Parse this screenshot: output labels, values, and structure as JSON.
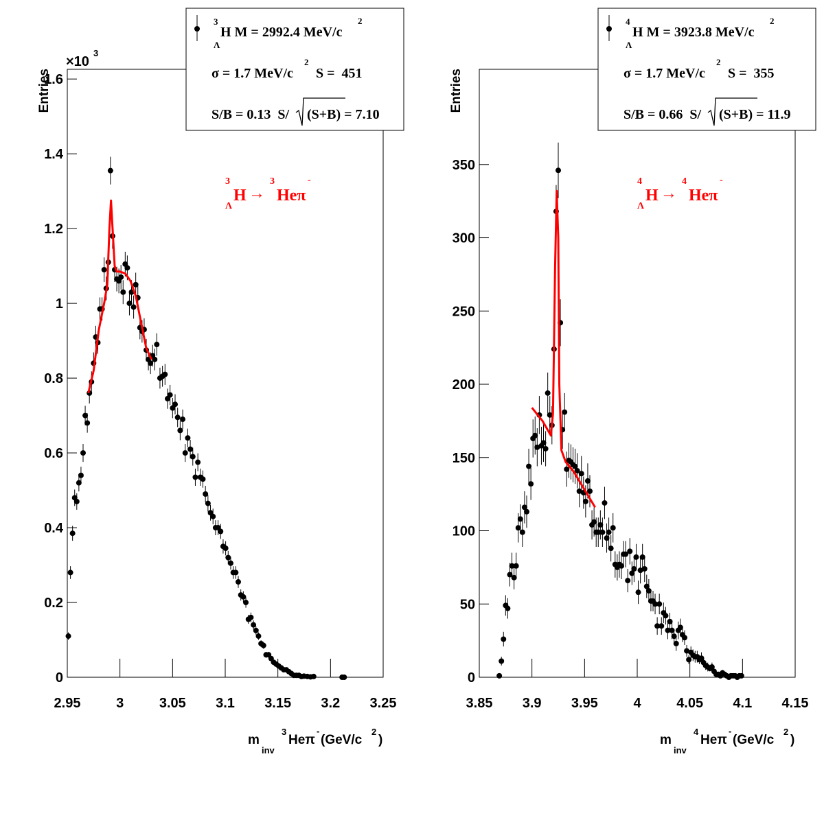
{
  "chart_data": [
    {
      "type": "scatter",
      "ylabel": "Entries",
      "multiplier": [
        "×10",
        "3"
      ],
      "xlabel": [
        "m",
        "inv",
        "3",
        "Heπ",
        "-",
        "(GeV/c",
        "2",
        ")"
      ],
      "annotation": [
        "3",
        "H",
        "Λ",
        "→",
        "3",
        "Heπ",
        "-"
      ],
      "annotation_color": "#ff0000",
      "legend": {
        "line1": [
          "3",
          "Λ",
          "H M = 2992.4 MeV/c",
          "2"
        ],
        "line2": [
          "σ = 1.7 MeV/c",
          "2",
          "S =  451"
        ],
        "line3": [
          "S/B = 0.13  S/",
          "(S+B) = 7.10"
        ]
      },
      "xlim": [
        2.95,
        3.25
      ],
      "xticks": [
        2.95,
        3,
        3.05,
        3.1,
        3.15,
        3.2,
        3.25
      ],
      "ylim": [
        0,
        1.626
      ],
      "yticks": [
        0,
        0.2,
        0.4,
        0.6,
        0.8,
        1,
        1.2,
        1.4,
        1.6
      ],
      "series": [
        {
          "type": "scatter",
          "color": "#000000",
          "x": [
            2.951,
            2.953,
            2.955,
            2.957,
            2.959,
            2.961,
            2.963,
            2.965,
            2.967,
            2.969,
            2.971,
            2.973,
            2.975,
            2.977,
            2.979,
            2.981,
            2.983,
            2.985,
            2.987,
            2.989,
            2.991,
            2.993,
            2.995,
            2.997,
            2.999,
            3.001,
            3.003,
            3.005,
            3.007,
            3.009,
            3.011,
            3.013,
            3.015,
            3.017,
            3.019,
            3.021,
            3.023,
            3.025,
            3.027,
            3.029,
            3.031,
            3.033,
            3.035,
            3.038,
            3.0404,
            3.0428,
            3.0452,
            3.0476,
            3.05,
            3.0524,
            3.0548,
            3.0572,
            3.0596,
            3.062,
            3.0644,
            3.0668,
            3.0692,
            3.0716,
            3.074,
            3.0764,
            3.0788,
            3.0812,
            3.0836,
            3.086,
            3.0884,
            3.0908,
            3.0932,
            3.0956,
            3.098,
            3.1004,
            3.1028,
            3.1052,
            3.1076,
            3.11,
            3.1124,
            3.1148,
            3.1172,
            3.1196,
            3.122,
            3.1244,
            3.1268,
            3.1292,
            3.1316,
            3.134,
            3.1364,
            3.1388,
            3.1412,
            3.1436,
            3.146,
            3.1484,
            3.1508,
            3.1532,
            3.1556,
            3.158,
            3.1604,
            3.1628,
            3.1652,
            3.1676,
            3.17,
            3.1724,
            3.1748,
            3.178,
            3.181,
            3.184,
            3.211,
            3.213
          ],
          "values": [
            0.11,
            0.28,
            0.385,
            0.48,
            0.47,
            0.52,
            0.54,
            0.6,
            0.7,
            0.68,
            0.76,
            0.79,
            0.84,
            0.91,
            0.895,
            0.985,
            0.985,
            1.09,
            1.04,
            1.11,
            1.355,
            1.18,
            1.09,
            1.065,
            1.06,
            1.07,
            1.03,
            1.105,
            1.095,
            1.0,
            1.03,
            0.99,
            1.05,
            1.015,
            0.935,
            0.925,
            0.93,
            0.875,
            0.85,
            0.84,
            0.86,
            0.85,
            0.89,
            0.8,
            0.805,
            0.81,
            0.745,
            0.755,
            0.72,
            0.73,
            0.695,
            0.66,
            0.69,
            0.6,
            0.64,
            0.61,
            0.59,
            0.535,
            0.575,
            0.535,
            0.53,
            0.49,
            0.465,
            0.44,
            0.43,
            0.4,
            0.4,
            0.39,
            0.35,
            0.345,
            0.32,
            0.305,
            0.28,
            0.28,
            0.255,
            0.22,
            0.215,
            0.2,
            0.155,
            0.16,
            0.14,
            0.125,
            0.11,
            0.09,
            0.085,
            0.06,
            0.06,
            0.05,
            0.04,
            0.035,
            0.03,
            0.025,
            0.02,
            0.02,
            0.015,
            0.01,
            0.005,
            0.005,
            0.005,
            0.002,
            0.003,
            0.002,
            0.001,
            0.002,
            0,
            0
          ],
          "errors": [
            0.01,
            0.017,
            0.02,
            0.022,
            0.022,
            0.023,
            0.023,
            0.024,
            0.026,
            0.026,
            0.028,
            0.028,
            0.029,
            0.03,
            0.03,
            0.031,
            0.031,
            0.033,
            0.032,
            0.033,
            0.037,
            0.034,
            0.033,
            0.033,
            0.033,
            0.033,
            0.032,
            0.033,
            0.033,
            0.032,
            0.032,
            0.031,
            0.032,
            0.032,
            0.031,
            0.03,
            0.03,
            0.03,
            0.029,
            0.029,
            0.029,
            0.029,
            0.03,
            0.028,
            0.028,
            0.028,
            0.027,
            0.027,
            0.027,
            0.027,
            0.026,
            0.026,
            0.026,
            0.024,
            0.025,
            0.025,
            0.024,
            0.023,
            0.024,
            0.023,
            0.023,
            0.022,
            0.022,
            0.021,
            0.021,
            0.02,
            0.02,
            0.02,
            0.019,
            0.019,
            0.018,
            0.017,
            0.017,
            0.017,
            0.016,
            0.015,
            0.015,
            0.014,
            0.012,
            0.013,
            0.012,
            0.011,
            0.01,
            0.009,
            0.009,
            0.008,
            0.008,
            0.007,
            0.006,
            0.006,
            0.005,
            0.005,
            0.004,
            0.004,
            0.004,
            0.003,
            0.002,
            0.002,
            0.002,
            0.001,
            0.002,
            0.001,
            0.001,
            0.001,
            0,
            0
          ]
        },
        {
          "type": "line",
          "color": "#ff0000",
          "x": [
            2.97,
            2.975,
            2.98,
            2.985,
            2.988,
            2.99,
            2.9915,
            2.993,
            2.995,
            2.997,
            3.0,
            3.005,
            3.01,
            3.015,
            3.02,
            3.025,
            3.03
          ],
          "values": [
            0.76,
            0.82,
            0.93,
            1.0,
            1.05,
            1.2,
            1.275,
            1.2,
            1.1,
            1.085,
            1.085,
            1.08,
            1.06,
            1.02,
            0.95,
            0.88,
            0.85
          ]
        }
      ]
    },
    {
      "type": "scatter",
      "ylabel": "Entries",
      "xlabel": [
        "m",
        "inv",
        "4",
        "Heπ",
        "-",
        "(GeV/c",
        "2",
        ")"
      ],
      "annotation": [
        "4",
        "H",
        "Λ",
        "→",
        "4",
        "Heπ",
        "-"
      ],
      "annotation_color": "#ff0000",
      "legend": {
        "line1": [
          "4",
          "Λ",
          "H M = 3923.8 MeV/c",
          "2"
        ],
        "line2": [
          "σ = 1.7 MeV/c",
          "2",
          "S =  355"
        ],
        "line3": [
          "S/B = 0.66  S/",
          "(S+B) = 11.9"
        ]
      },
      "xlim": [
        3.85,
        4.15
      ],
      "xticks": [
        3.85,
        3.9,
        3.95,
        4,
        4.05,
        4.1,
        4.15
      ],
      "ylim": [
        0,
        415
      ],
      "yticks": [
        0,
        50,
        100,
        150,
        200,
        250,
        300,
        350
      ],
      "series": [
        {
          "type": "scatter",
          "color": "#000000",
          "x": [
            3.869,
            3.871,
            3.873,
            3.875,
            3.877,
            3.879,
            3.881,
            3.883,
            3.885,
            3.887,
            3.889,
            3.891,
            3.893,
            3.895,
            3.897,
            3.899,
            3.901,
            3.903,
            3.905,
            3.907,
            3.909,
            3.911,
            3.913,
            3.915,
            3.917,
            3.919,
            3.921,
            3.923,
            3.925,
            3.927,
            3.929,
            3.931,
            3.933,
            3.935,
            3.937,
            3.939,
            3.941,
            3.943,
            3.945,
            3.947,
            3.949,
            3.951,
            3.953,
            3.955,
            3.957,
            3.959,
            3.961,
            3.963,
            3.965,
            3.967,
            3.969,
            3.971,
            3.973,
            3.975,
            3.977,
            3.979,
            3.981,
            3.983,
            3.985,
            3.987,
            3.989,
            3.991,
            3.993,
            3.995,
            3.997,
            3.999,
            4.001,
            4.003,
            4.005,
            4.007,
            4.009,
            4.011,
            4.013,
            4.015,
            4.017,
            4.019,
            4.021,
            4.023,
            4.025,
            4.027,
            4.029,
            4.031,
            4.033,
            4.035,
            4.037,
            4.039,
            4.041,
            4.043,
            4.045,
            4.047,
            4.049,
            4.051,
            4.053,
            4.055,
            4.057,
            4.059,
            4.061,
            4.063,
            4.065,
            4.067,
            4.069,
            4.071,
            4.073,
            4.075,
            4.077,
            4.079,
            4.081,
            4.083,
            4.085,
            4.087,
            4.089,
            4.091,
            4.093,
            4.095,
            4.097,
            4.099
          ],
          "values": [
            1,
            11,
            26,
            49,
            47,
            70,
            76,
            68,
            76,
            102,
            108,
            99,
            116,
            113,
            144,
            132,
            163,
            165,
            157,
            179,
            158,
            160,
            156,
            194,
            179,
            172,
            224,
            318,
            346,
            242,
            169,
            181,
            142,
            148,
            147,
            145,
            144,
            141,
            127,
            139,
            126,
            120,
            134,
            127,
            104,
            106,
            99,
            99,
            104,
            99,
            119,
            95,
            99,
            88,
            102,
            77,
            75,
            77,
            76,
            84,
            84,
            66,
            86,
            71,
            74,
            82,
            58,
            73,
            82,
            74,
            62,
            59,
            52,
            52,
            50,
            35,
            50,
            35,
            44,
            42,
            32,
            38,
            32,
            28,
            23,
            32,
            34,
            29,
            27,
            18,
            12,
            17,
            15,
            14,
            14,
            12,
            13,
            10,
            8,
            7,
            6,
            7,
            4,
            2,
            2,
            1,
            3,
            2,
            1,
            0,
            1,
            1,
            1,
            0,
            1,
            1
          ],
          "errors": [
            1,
            3,
            5,
            7,
            7,
            8,
            9,
            8,
            9,
            10,
            10,
            10,
            11,
            11,
            12,
            11,
            13,
            13,
            13,
            13,
            13,
            13,
            12,
            14,
            13,
            13,
            15,
            18,
            19,
            16,
            13,
            13,
            12,
            12,
            12,
            12,
            12,
            12,
            11,
            12,
            11,
            11,
            12,
            11,
            10,
            10,
            10,
            10,
            10,
            10,
            11,
            10,
            10,
            9,
            10,
            9,
            9,
            9,
            9,
            9,
            9,
            8,
            9,
            8,
            9,
            9,
            8,
            9,
            9,
            9,
            8,
            8,
            7,
            7,
            7,
            6,
            7,
            6,
            7,
            6,
            6,
            6,
            6,
            5,
            5,
            6,
            6,
            5,
            5,
            4,
            3,
            4,
            4,
            4,
            4,
            3,
            4,
            3,
            3,
            3,
            2,
            3,
            2,
            1,
            1,
            1,
            2,
            1,
            1,
            0,
            1,
            1,
            1,
            0,
            1,
            1
          ]
        },
        {
          "type": "line",
          "color": "#ff0000",
          "x": [
            3.9,
            3.91,
            3.918,
            3.92,
            3.922,
            3.9235,
            3.925,
            3.926,
            3.928,
            3.932,
            3.94,
            3.95,
            3.96
          ],
          "values": [
            184,
            175,
            165,
            180,
            280,
            332,
            300,
            200,
            155,
            147,
            140,
            128,
            116
          ]
        }
      ]
    }
  ]
}
